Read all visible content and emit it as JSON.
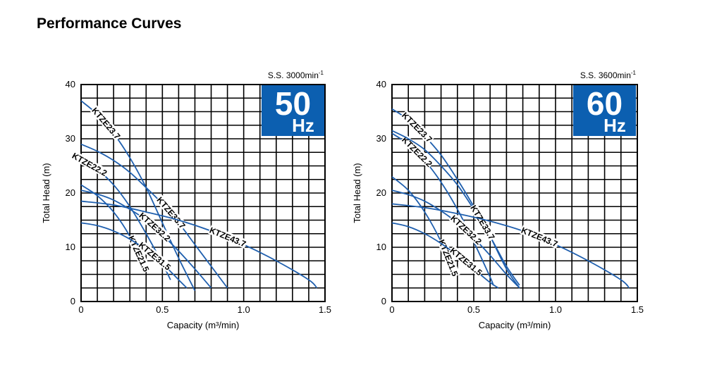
{
  "page_title": "Performance Curves",
  "colors": {
    "curve": "#1f5fae",
    "badge": "#0c5fb0",
    "grid": "#000000"
  },
  "chart_data": [
    {
      "type": "line",
      "frequency": "50",
      "unit": "Hz",
      "speed_text": "S.S. 3000min",
      "speed_superscript": "-1",
      "xlabel": "Capacity (m³/min)",
      "ylabel": "Total Head (m)",
      "xlim": [
        0,
        1.5
      ],
      "ylim": [
        0,
        40
      ],
      "x_ticks": [
        "0",
        "0.5",
        "1.0",
        "1.5"
      ],
      "x_tick_values": [
        0,
        0.5,
        1.0,
        1.5
      ],
      "y_ticks": [
        "0",
        "10",
        "20",
        "30",
        "40"
      ],
      "y_tick_values": [
        0,
        10,
        20,
        30,
        40
      ],
      "grid": true,
      "series": [
        {
          "name": "KTZE23.7",
          "x": [
            0,
            0.1,
            0.2,
            0.3,
            0.4,
            0.5,
            0.6,
            0.7
          ],
          "y": [
            37,
            34.5,
            31,
            26.5,
            21,
            14.5,
            8,
            2
          ]
        },
        {
          "name": "KTZE22.2",
          "x": [
            0,
            0.1,
            0.2,
            0.3,
            0.4,
            0.5,
            0.55
          ],
          "y": [
            26,
            24.3,
            21.5,
            17.5,
            12.5,
            7,
            4
          ]
        },
        {
          "name": "KTZE21.5",
          "x": [
            0,
            0.1,
            0.2,
            0.3,
            0.4
          ],
          "y": [
            21.5,
            19.5,
            16.5,
            12,
            5.5
          ]
        },
        {
          "name": "KTZE31.5",
          "x": [
            0,
            0.1,
            0.2,
            0.3,
            0.4,
            0.5,
            0.6,
            0.65
          ],
          "y": [
            14.5,
            14,
            13,
            11.5,
            9.5,
            7,
            4,
            2.5
          ]
        },
        {
          "name": "KTZE32.2",
          "x": [
            0,
            0.1,
            0.2,
            0.3,
            0.4,
            0.5,
            0.6,
            0.7,
            0.8
          ],
          "y": [
            20.5,
            19.8,
            18.7,
            17,
            15,
            12.3,
            9.3,
            6,
            2.5
          ]
        },
        {
          "name": "KTZE33.7",
          "x": [
            0,
            0.1,
            0.2,
            0.3,
            0.4,
            0.5,
            0.6,
            0.7,
            0.8,
            0.9
          ],
          "y": [
            29,
            27.7,
            26,
            23.8,
            21,
            18,
            14.5,
            10.5,
            6.5,
            2.5
          ]
        },
        {
          "name": "KTZE43.7",
          "x": [
            0,
            0.2,
            0.4,
            0.6,
            0.8,
            1.0,
            1.2,
            1.4,
            1.45
          ],
          "y": [
            18.5,
            17.8,
            16.5,
            15,
            13,
            10.5,
            7.5,
            4,
            2.5
          ]
        }
      ]
    },
    {
      "type": "line",
      "frequency": "60",
      "unit": "Hz",
      "speed_text": "S.S. 3600min",
      "speed_superscript": "-1",
      "xlabel": "Capacity (m³/min)",
      "ylabel": "Total Head (m)",
      "xlim": [
        0,
        1.5
      ],
      "ylim": [
        0,
        40
      ],
      "x_ticks": [
        "0",
        "0.5",
        "1.0",
        "1.5"
      ],
      "x_tick_values": [
        0,
        0.5,
        1.0,
        1.5
      ],
      "y_ticks": [
        "0",
        "10",
        "20",
        "30",
        "40"
      ],
      "y_tick_values": [
        0,
        10,
        20,
        30,
        40
      ],
      "grid": true,
      "series": [
        {
          "name": "KTZE23.7",
          "x": [
            0,
            0.1,
            0.2,
            0.3,
            0.4,
            0.5,
            0.6,
            0.7,
            0.78
          ],
          "y": [
            35.5,
            33.5,
            30.5,
            27,
            22.5,
            17.5,
            12,
            6,
            2.5
          ]
        },
        {
          "name": "KTZE22.2",
          "x": [
            0,
            0.1,
            0.2,
            0.3,
            0.4,
            0.5,
            0.6,
            0.62
          ],
          "y": [
            31,
            29,
            26,
            22,
            17,
            11,
            4.5,
            3
          ]
        },
        {
          "name": "KTZE21.5",
          "x": [
            0,
            0.1,
            0.2,
            0.3,
            0.38
          ],
          "y": [
            23,
            20.5,
            16.5,
            11,
            5
          ]
        },
        {
          "name": "KTZE31.5",
          "x": [
            0,
            0.1,
            0.2,
            0.3,
            0.4,
            0.5,
            0.6,
            0.65
          ],
          "y": [
            14.5,
            13.8,
            12.5,
            10.7,
            8.5,
            6,
            3.5,
            2.5
          ]
        },
        {
          "name": "KTZE32.2",
          "x": [
            0,
            0.1,
            0.2,
            0.3,
            0.4,
            0.5,
            0.6,
            0.7,
            0.78
          ],
          "y": [
            20.5,
            19.7,
            18.5,
            16.7,
            14.5,
            11.7,
            8.5,
            5,
            2.5
          ]
        },
        {
          "name": "KTZE33.7",
          "x": [
            0,
            0.1,
            0.2,
            0.3,
            0.4,
            0.5,
            0.6,
            0.7,
            0.78
          ],
          "y": [
            31.5,
            30,
            28,
            25,
            21.5,
            17,
            12,
            6.5,
            3
          ]
        },
        {
          "name": "KTZE43.7",
          "x": [
            0,
            0.2,
            0.4,
            0.6,
            0.8,
            1.0,
            1.2,
            1.4,
            1.45
          ],
          "y": [
            18,
            17.3,
            16.2,
            14.8,
            13,
            10.5,
            7.5,
            4,
            2.5
          ]
        }
      ]
    }
  ]
}
